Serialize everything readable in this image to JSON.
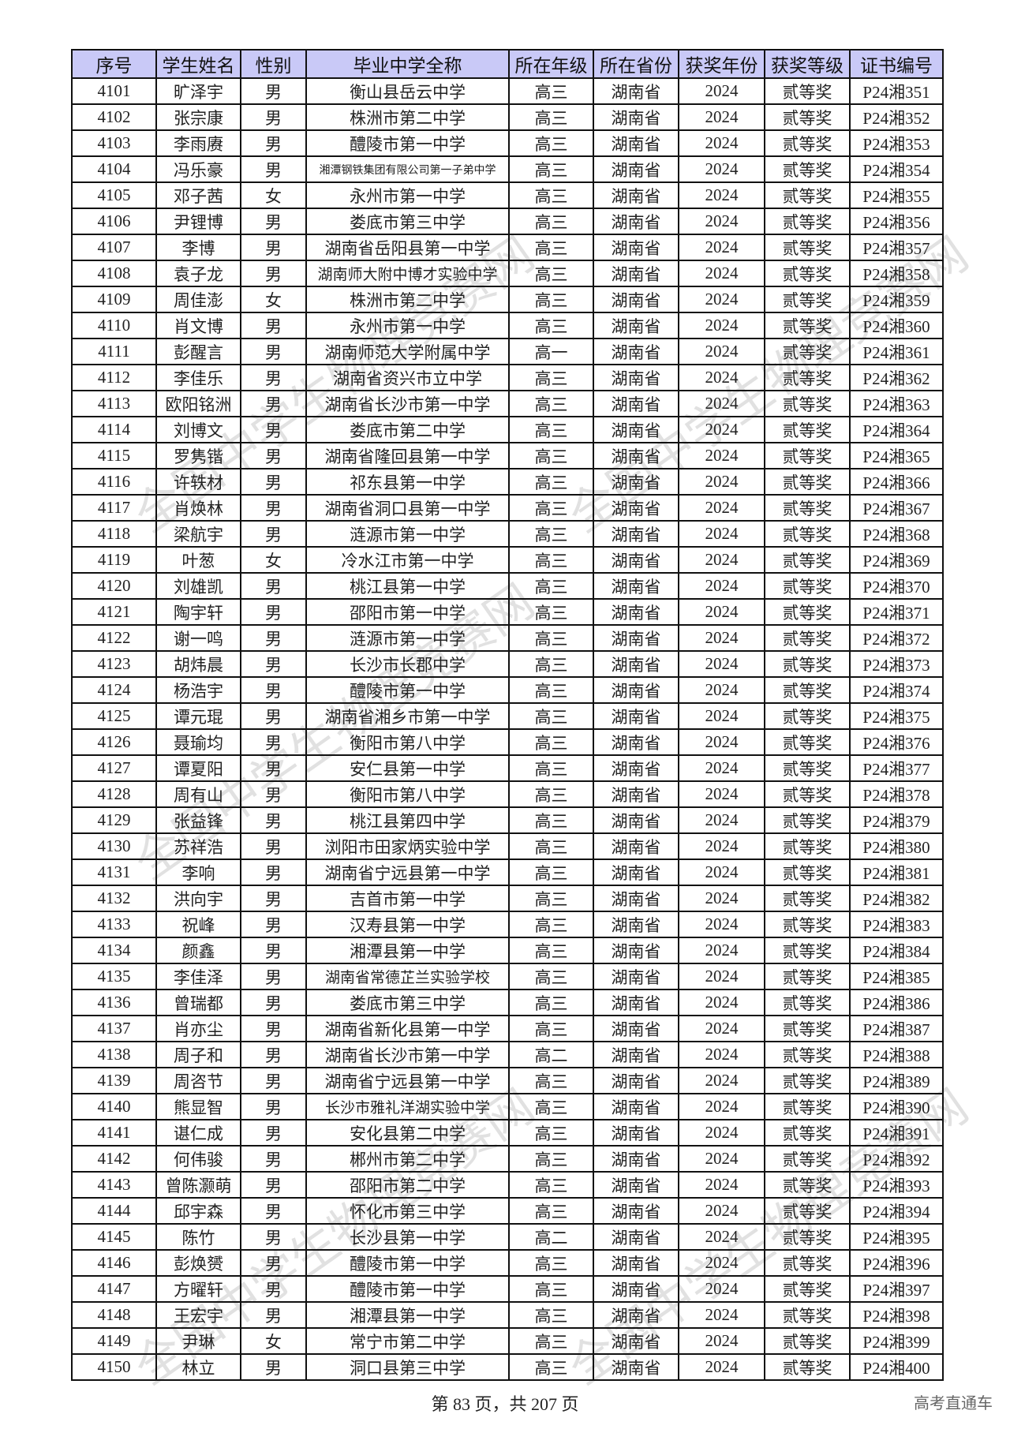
{
  "table": {
    "headers": [
      "序号",
      "学生姓名",
      "性别",
      "毕业中学全称",
      "所在年级",
      "所在省份",
      "获奖年份",
      "获奖等级",
      "证书编号"
    ],
    "rows": [
      [
        "4101",
        "旷泽宇",
        "男",
        "衡山县岳云中学",
        "高三",
        "湖南省",
        "2024",
        "贰等奖",
        "P24湘351"
      ],
      [
        "4102",
        "张宗康",
        "男",
        "株洲市第二中学",
        "高三",
        "湖南省",
        "2024",
        "贰等奖",
        "P24湘352"
      ],
      [
        "4103",
        "李雨赓",
        "男",
        "醴陵市第一中学",
        "高三",
        "湖南省",
        "2024",
        "贰等奖",
        "P24湘353"
      ],
      [
        "4104",
        "冯乐豪",
        "男",
        "湘潭钢铁集团有限公司第一子弟中学",
        "高三",
        "湖南省",
        "2024",
        "贰等奖",
        "P24湘354"
      ],
      [
        "4105",
        "邓子茜",
        "女",
        "永州市第一中学",
        "高三",
        "湖南省",
        "2024",
        "贰等奖",
        "P24湘355"
      ],
      [
        "4106",
        "尹锂博",
        "男",
        "娄底市第三中学",
        "高三",
        "湖南省",
        "2024",
        "贰等奖",
        "P24湘356"
      ],
      [
        "4107",
        "李博",
        "男",
        "湖南省岳阳县第一中学",
        "高三",
        "湖南省",
        "2024",
        "贰等奖",
        "P24湘357"
      ],
      [
        "4108",
        "袁子龙",
        "男",
        "湖南师大附中博才实验中学",
        "高三",
        "湖南省",
        "2024",
        "贰等奖",
        "P24湘358"
      ],
      [
        "4109",
        "周佳澎",
        "女",
        "株洲市第二中学",
        "高三",
        "湖南省",
        "2024",
        "贰等奖",
        "P24湘359"
      ],
      [
        "4110",
        "肖文博",
        "男",
        "永州市第一中学",
        "高三",
        "湖南省",
        "2024",
        "贰等奖",
        "P24湘360"
      ],
      [
        "4111",
        "彭醒言",
        "男",
        "湖南师范大学附属中学",
        "高一",
        "湖南省",
        "2024",
        "贰等奖",
        "P24湘361"
      ],
      [
        "4112",
        "李佳乐",
        "男",
        "湖南省资兴市立中学",
        "高三",
        "湖南省",
        "2024",
        "贰等奖",
        "P24湘362"
      ],
      [
        "4113",
        "欧阳铭洲",
        "男",
        "湖南省长沙市第一中学",
        "高三",
        "湖南省",
        "2024",
        "贰等奖",
        "P24湘363"
      ],
      [
        "4114",
        "刘博文",
        "男",
        "娄底市第二中学",
        "高三",
        "湖南省",
        "2024",
        "贰等奖",
        "P24湘364"
      ],
      [
        "4115",
        "罗隽锴",
        "男",
        "湖南省隆回县第一中学",
        "高三",
        "湖南省",
        "2024",
        "贰等奖",
        "P24湘365"
      ],
      [
        "4116",
        "许轶材",
        "男",
        "祁东县第一中学",
        "高三",
        "湖南省",
        "2024",
        "贰等奖",
        "P24湘366"
      ],
      [
        "4117",
        "肖焕林",
        "男",
        "湖南省洞口县第一中学",
        "高三",
        "湖南省",
        "2024",
        "贰等奖",
        "P24湘367"
      ],
      [
        "4118",
        "梁航宇",
        "男",
        "涟源市第一中学",
        "高三",
        "湖南省",
        "2024",
        "贰等奖",
        "P24湘368"
      ],
      [
        "4119",
        "叶葱",
        "女",
        "冷水江市第一中学",
        "高三",
        "湖南省",
        "2024",
        "贰等奖",
        "P24湘369"
      ],
      [
        "4120",
        "刘雄凯",
        "男",
        "桃江县第一中学",
        "高三",
        "湖南省",
        "2024",
        "贰等奖",
        "P24湘370"
      ],
      [
        "4121",
        "陶宇轩",
        "男",
        "邵阳市第一中学",
        "高三",
        "湖南省",
        "2024",
        "贰等奖",
        "P24湘371"
      ],
      [
        "4122",
        "谢一鸣",
        "男",
        "涟源市第一中学",
        "高三",
        "湖南省",
        "2024",
        "贰等奖",
        "P24湘372"
      ],
      [
        "4123",
        "胡炜晨",
        "男",
        "长沙市长郡中学",
        "高三",
        "湖南省",
        "2024",
        "贰等奖",
        "P24湘373"
      ],
      [
        "4124",
        "杨浩宇",
        "男",
        "醴陵市第一中学",
        "高三",
        "湖南省",
        "2024",
        "贰等奖",
        "P24湘374"
      ],
      [
        "4125",
        "谭元琨",
        "男",
        "湖南省湘乡市第一中学",
        "高三",
        "湖南省",
        "2024",
        "贰等奖",
        "P24湘375"
      ],
      [
        "4126",
        "聂瑜均",
        "男",
        "衡阳市第八中学",
        "高三",
        "湖南省",
        "2024",
        "贰等奖",
        "P24湘376"
      ],
      [
        "4127",
        "谭夏阳",
        "男",
        "安仁县第一中学",
        "高三",
        "湖南省",
        "2024",
        "贰等奖",
        "P24湘377"
      ],
      [
        "4128",
        "周有山",
        "男",
        "衡阳市第八中学",
        "高三",
        "湖南省",
        "2024",
        "贰等奖",
        "P24湘378"
      ],
      [
        "4129",
        "张益锋",
        "男",
        "桃江县第四中学",
        "高三",
        "湖南省",
        "2024",
        "贰等奖",
        "P24湘379"
      ],
      [
        "4130",
        "苏祥浩",
        "男",
        "浏阳市田家炳实验中学",
        "高三",
        "湖南省",
        "2024",
        "贰等奖",
        "P24湘380"
      ],
      [
        "4131",
        "李响",
        "男",
        "湖南省宁远县第一中学",
        "高三",
        "湖南省",
        "2024",
        "贰等奖",
        "P24湘381"
      ],
      [
        "4132",
        "洪向宇",
        "男",
        "吉首市第一中学",
        "高三",
        "湖南省",
        "2024",
        "贰等奖",
        "P24湘382"
      ],
      [
        "4133",
        "祝峰",
        "男",
        "汉寿县第一中学",
        "高三",
        "湖南省",
        "2024",
        "贰等奖",
        "P24湘383"
      ],
      [
        "4134",
        "颜鑫",
        "男",
        "湘潭县第一中学",
        "高三",
        "湖南省",
        "2024",
        "贰等奖",
        "P24湘384"
      ],
      [
        "4135",
        "李佳泽",
        "男",
        "湖南省常德芷兰实验学校",
        "高三",
        "湖南省",
        "2024",
        "贰等奖",
        "P24湘385"
      ],
      [
        "4136",
        "曾瑞都",
        "男",
        "娄底市第三中学",
        "高三",
        "湖南省",
        "2024",
        "贰等奖",
        "P24湘386"
      ],
      [
        "4137",
        "肖亦尘",
        "男",
        "湖南省新化县第一中学",
        "高三",
        "湖南省",
        "2024",
        "贰等奖",
        "P24湘387"
      ],
      [
        "4138",
        "周子和",
        "男",
        "湖南省长沙市第一中学",
        "高二",
        "湖南省",
        "2024",
        "贰等奖",
        "P24湘388"
      ],
      [
        "4139",
        "周咨节",
        "男",
        "湖南省宁远县第一中学",
        "高三",
        "湖南省",
        "2024",
        "贰等奖",
        "P24湘389"
      ],
      [
        "4140",
        "熊显智",
        "男",
        "长沙市雅礼洋湖实验中学",
        "高三",
        "湖南省",
        "2024",
        "贰等奖",
        "P24湘390"
      ],
      [
        "4141",
        "谌仁成",
        "男",
        "安化县第二中学",
        "高三",
        "湖南省",
        "2024",
        "贰等奖",
        "P24湘391"
      ],
      [
        "4142",
        "何伟骏",
        "男",
        "郴州市第二中学",
        "高三",
        "湖南省",
        "2024",
        "贰等奖",
        "P24湘392"
      ],
      [
        "4143",
        "曾陈灏萌",
        "男",
        "邵阳市第二中学",
        "高三",
        "湖南省",
        "2024",
        "贰等奖",
        "P24湘393"
      ],
      [
        "4144",
        "邱宇森",
        "男",
        "怀化市第三中学",
        "高三",
        "湖南省",
        "2024",
        "贰等奖",
        "P24湘394"
      ],
      [
        "4145",
        "陈竹",
        "男",
        "长沙县第一中学",
        "高二",
        "湖南省",
        "2024",
        "贰等奖",
        "P24湘395"
      ],
      [
        "4146",
        "彭焕赟",
        "男",
        "醴陵市第一中学",
        "高三",
        "湖南省",
        "2024",
        "贰等奖",
        "P24湘396"
      ],
      [
        "4147",
        "方曜轩",
        "男",
        "醴陵市第一中学",
        "高三",
        "湖南省",
        "2024",
        "贰等奖",
        "P24湘397"
      ],
      [
        "4148",
        "王宏宇",
        "男",
        "湘潭县第一中学",
        "高三",
        "湖南省",
        "2024",
        "贰等奖",
        "P24湘398"
      ],
      [
        "4149",
        "尹琳",
        "女",
        "常宁市第二中学",
        "高三",
        "湖南省",
        "2024",
        "贰等奖",
        "P24湘399"
      ],
      [
        "4150",
        "林立",
        "男",
        "洞口县第三中学",
        "高三",
        "湖南省",
        "2024",
        "贰等奖",
        "P24湘400"
      ]
    ]
  },
  "footer": {
    "page_info": "第 83 页，共 207 页",
    "brand": "高考直通车"
  },
  "watermark": {
    "text": "全国中学生物理竞赛网",
    "society": "中国物理学会 Chinese Physical Society"
  },
  "colors": {
    "header_bg": "#c9c9f7",
    "border": "#111111"
  }
}
